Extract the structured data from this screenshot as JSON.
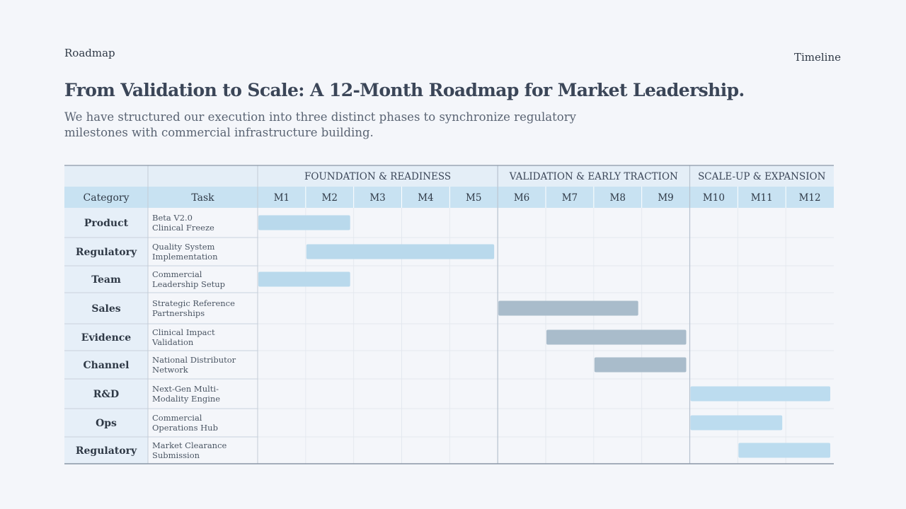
{
  "header": {
    "breadcrumb": "Roadmap",
    "section_label": "Timeline",
    "title": "From Validation to Scale: A 12-Month Roadmap for Market Leadership.",
    "subtitle": "We have structured our execution into three distinct phases to synchronize regulatory milestones with commercial infrastructure building."
  },
  "chart_data": {
    "type": "gantt",
    "columns": {
      "category": "Category",
      "task": "Task"
    },
    "months": [
      "M1",
      "M2",
      "M3",
      "M4",
      "M5",
      "M6",
      "M7",
      "M8",
      "M9",
      "M10",
      "M11",
      "M12"
    ],
    "phases": [
      {
        "label": "FOUNDATION & READINESS",
        "start_month": 1,
        "end_month": 5
      },
      {
        "label": "VALIDATION & EARLY TRACTION",
        "start_month": 6,
        "end_month": 9
      },
      {
        "label": "SCALE-UP & EXPANSION",
        "start_month": 10,
        "end_month": 12
      }
    ],
    "tasks": [
      {
        "category": "Product",
        "task_lines": [
          "Beta V2.0",
          "Clinical Freeze"
        ],
        "start_month": 1,
        "end_month": 2,
        "phase": 1
      },
      {
        "category": "Regulatory",
        "task_lines": [
          "Quality System",
          "Implementation"
        ],
        "start_month": 2,
        "end_month": 5,
        "phase": 1
      },
      {
        "category": "Team",
        "task_lines": [
          "Commercial",
          "Leadership Setup"
        ],
        "start_month": 1,
        "end_month": 2,
        "phase": 1
      },
      {
        "category": "Sales",
        "task_lines": [
          "Strategic Reference",
          "Partnerships"
        ],
        "start_month": 6,
        "end_month": 8,
        "phase": 2
      },
      {
        "category": "Evidence",
        "task_lines": [
          "Clinical Impact",
          "Validation"
        ],
        "start_month": 7,
        "end_month": 9,
        "phase": 2
      },
      {
        "category": "Channel",
        "task_lines": [
          "National Distributor",
          "Network"
        ],
        "start_month": 8,
        "end_month": 9,
        "phase": 2
      },
      {
        "category": "R&D",
        "task_lines": [
          "Next-Gen Multi-",
          "Modality Engine"
        ],
        "start_month": 10,
        "end_month": 12,
        "phase": 3
      },
      {
        "category": "Ops",
        "task_lines": [
          "Commercial",
          "Operations Hub"
        ],
        "start_month": 10,
        "end_month": 11,
        "phase": 3
      },
      {
        "category": "Regulatory",
        "task_lines": [
          "Market Clearance",
          "Submission"
        ],
        "start_month": 11,
        "end_month": 12,
        "phase": 3
      }
    ],
    "colors": {
      "phase_1": "#b9d9ec",
      "phase_2": "#a9bccb",
      "phase_3": "#bcdcef",
      "header_fill": "#c8e2f2",
      "phase_header_fill": "#e4eef7",
      "category_fill": "#e6eff8",
      "grid": "#e3e8ef",
      "border": "#8a96a6"
    }
  }
}
